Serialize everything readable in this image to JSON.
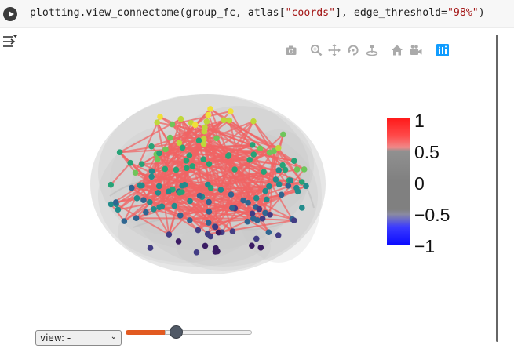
{
  "cell": {
    "code_parts": [
      {
        "text": "plotting.view_connectome(group_fc, atlas[",
        "kind": "plain"
      },
      {
        "text": "\"coords\"",
        "kind": "str"
      },
      {
        "text": "], edge_threshold=",
        "kind": "plain"
      },
      {
        "text": "\"98%\"",
        "kind": "str"
      },
      {
        "text": ")",
        "kind": "plain"
      }
    ]
  },
  "modebar": {
    "icons": [
      "camera-icon",
      "zoom-icon",
      "pan-icon",
      "orbit-rotation-icon",
      "turntable-rotation-icon",
      "home-icon",
      "camera-view-icon",
      "plotly-logo-icon"
    ]
  },
  "colorbar": {
    "tick_labels": [
      "1",
      "0.5",
      "0",
      "−0.5",
      "−1"
    ],
    "tick_values": [
      1,
      0.5,
      0,
      -0.5,
      -1
    ]
  },
  "controls": {
    "view_select_value": "view: -",
    "slider_value": 0.32
  },
  "colors": {
    "edge": "#f06464",
    "brain": "#c8c8c8",
    "accent": "#e25a21"
  }
}
